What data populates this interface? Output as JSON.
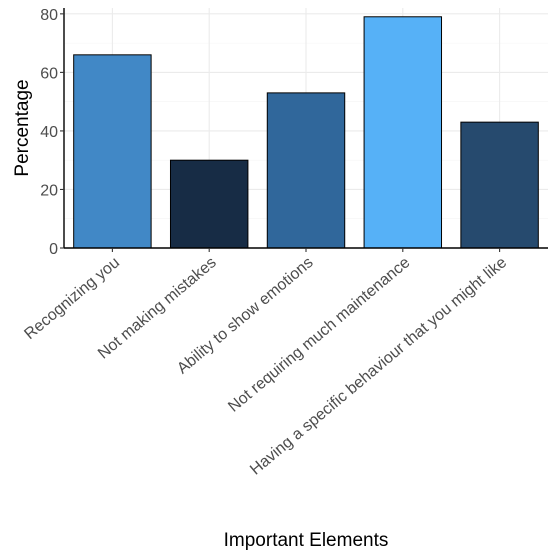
{
  "chart_data": {
    "type": "bar",
    "title": "",
    "xlabel": "Important Elements",
    "ylabel": "Percentage",
    "categories": [
      "Recognizing you",
      "Not making mistakes",
      "Ability to show emotions",
      "Not requiring much maintenance",
      "Having a specific behaviour that you might like"
    ],
    "values": [
      66,
      30,
      53,
      79,
      43
    ],
    "colors": [
      "#4188C6",
      "#172C45",
      "#30679B",
      "#56B1F7",
      "#264A6E"
    ],
    "ylim": [
      0,
      82
    ],
    "yticks": [
      0,
      20,
      40,
      60,
      80
    ],
    "grid": true,
    "legend": "none"
  }
}
